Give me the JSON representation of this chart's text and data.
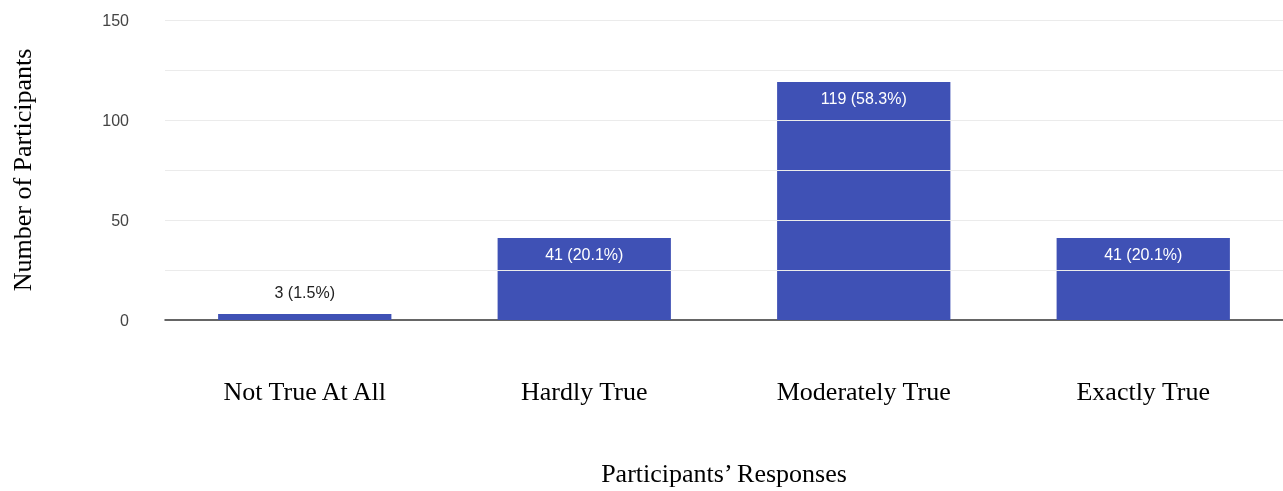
{
  "chart_data": {
    "type": "bar",
    "xlabel": "Participants’ Responses",
    "ylabel": "Number of Participants",
    "categories": [
      "Not True At All",
      "Hardly True",
      "Moderately True",
      "Exactly True"
    ],
    "values": [
      3,
      41,
      119,
      41
    ],
    "color": "#3f51b5",
    "value_labels": [
      "3 (1.5%)",
      "41 (20.1%)",
      "119 (58.3%)",
      "41 (20.1%)"
    ],
    "ylim": [
      0,
      150
    ],
    "yticks": [
      0,
      {
        "value": 25,
        "label": null
      },
      50,
      {
        "value": 75,
        "label": null
      },
      100,
      {
        "value": 125,
        "label": null
      },
      150
    ],
    "grid": "y"
  }
}
